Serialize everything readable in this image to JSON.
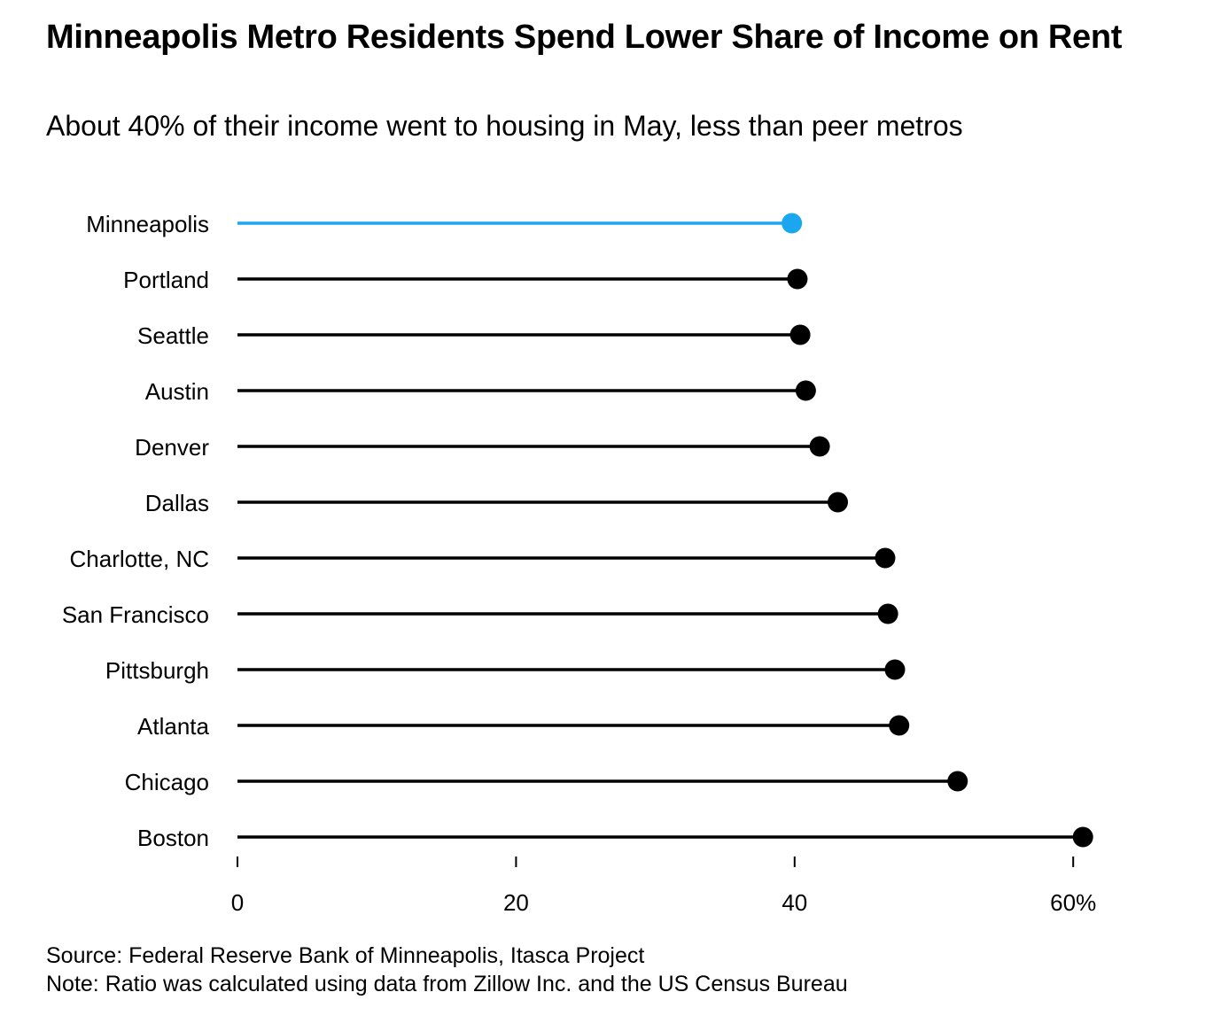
{
  "header": {
    "title": "Minneapolis Metro Residents Spend Lower Share of Income on Rent",
    "subtitle": "About 40% of their income went to housing in May, less than peer metros"
  },
  "footer": {
    "source": "Source: Federal Reserve Bank of Minneapolis, Itasca Project",
    "note": "Note: Ratio was calculated using data from Zillow Inc. and the US Census Bureau"
  },
  "colors": {
    "highlight": "#1ba7f0",
    "default": "#000000"
  },
  "chart_data": {
    "type": "lollipop",
    "title": "Minneapolis Metro Residents Spend Lower Share of Income on Rent",
    "subtitle": "About 40% of their income went to housing in May, less than peer metros",
    "xlabel": "",
    "ylabel": "",
    "xlim": [
      0,
      60
    ],
    "x_ticks": [
      0,
      20,
      40,
      60
    ],
    "x_tick_labels": [
      "0",
      "20",
      "40",
      "60%"
    ],
    "grid": false,
    "highlight_category": "Minneapolis",
    "categories": [
      "Minneapolis",
      "Portland",
      "Seattle",
      "Austin",
      "Denver",
      "Dallas",
      "Charlotte, NC",
      "San Francisco",
      "Pittsburgh",
      "Atlanta",
      "Chicago",
      "Boston"
    ],
    "values": [
      39.8,
      40.2,
      40.4,
      40.8,
      41.8,
      43.1,
      46.5,
      46.7,
      47.2,
      47.5,
      51.7,
      60.7
    ]
  }
}
